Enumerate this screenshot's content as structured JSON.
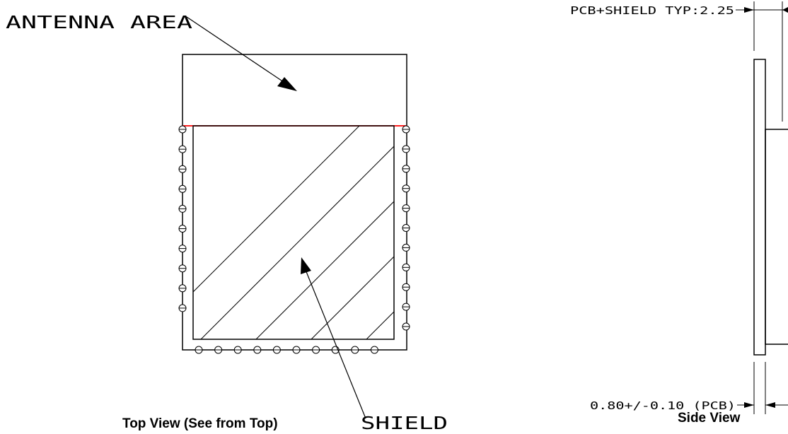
{
  "labels": {
    "antenna_area": "ANTENNA AREA",
    "shield": "SHIELD",
    "pcb_shield_dim": "PCB+SHIELD TYP:2.25",
    "pcb_dim": "0.80+/-0.10 (PCB)",
    "top_view_caption": "Top View (See from Top)",
    "side_view_caption": "Side View"
  },
  "colors": {
    "outline": "#000000",
    "antenna_boundary": "#ff0000"
  },
  "pads": {
    "left_count": 10,
    "right_count": 11,
    "bottom_count": 10
  }
}
